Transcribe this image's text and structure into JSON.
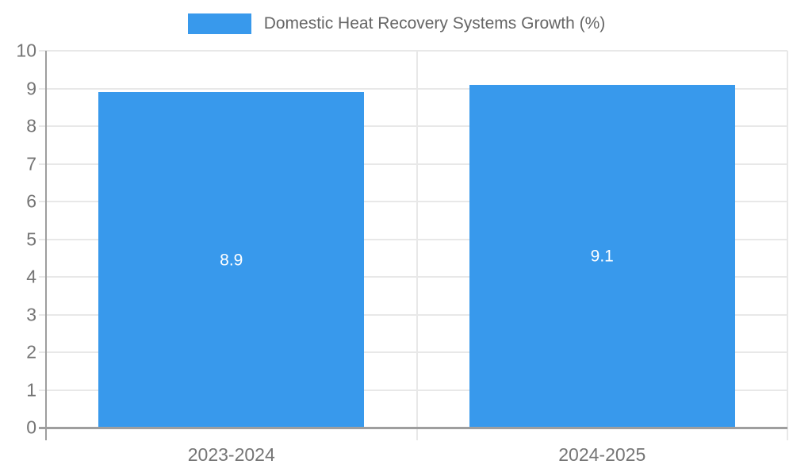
{
  "chart_data": {
    "type": "bar",
    "title": "Domestic Heat Recovery Systems Growth (%)",
    "categories": [
      "2023-2024",
      "2024-2025"
    ],
    "values": [
      8.9,
      9.1
    ],
    "xlabel": "",
    "ylabel": "",
    "ylim": [
      0,
      10
    ],
    "ytick_step": 1,
    "bar_fraction": 0.717,
    "grid": true,
    "legend_position": "top",
    "value_label_position": "inside-center"
  },
  "colors": {
    "bar": "#3899ec",
    "grid": "#e8e8e8",
    "axis": "#9e9e9e",
    "tick_text": "#757575",
    "legend_text": "#666666",
    "value_text": "#ffffff",
    "background": "#ffffff"
  }
}
